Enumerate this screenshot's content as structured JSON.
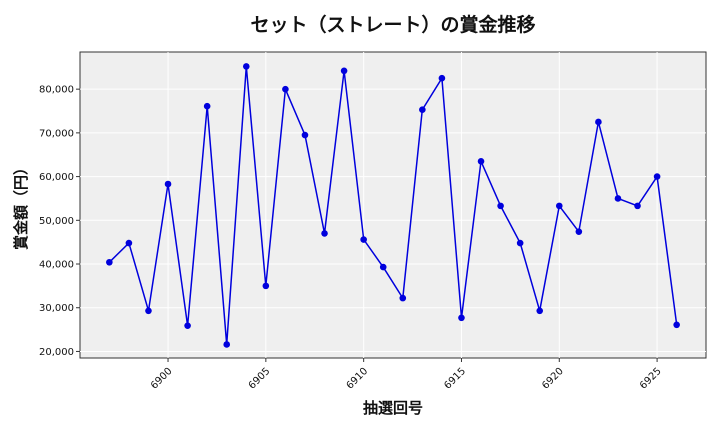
{
  "chart_data": {
    "type": "line",
    "title": "セット（ストレート）の賞金推移",
    "xlabel": "抽選回号",
    "ylabel": "賞金額（円）",
    "xlim": [
      6895.5,
      6927.5
    ],
    "ylim": [
      18500,
      88500
    ],
    "x_ticks": [
      6900,
      6905,
      6910,
      6915,
      6920,
      6925
    ],
    "y_ticks": [
      20000,
      30000,
      40000,
      50000,
      60000,
      70000,
      80000
    ],
    "y_tick_labels": [
      "20,000",
      "30,000",
      "40,000",
      "50,000",
      "60,000",
      "70,000",
      "80,000"
    ],
    "grid": true,
    "colors": {
      "series": "#0000dd",
      "plot_bg": "#efefef",
      "grid": "#ffffff"
    },
    "series": [
      {
        "x": [
          6897,
          6898,
          6899,
          6900,
          6901,
          6902,
          6903,
          6904,
          6905,
          6906,
          6907,
          6908,
          6909,
          6910,
          6911,
          6912,
          6913,
          6914,
          6915,
          6916,
          6917,
          6918,
          6919,
          6920,
          6921,
          6922,
          6923,
          6924,
          6925,
          6926
        ],
        "values": [
          40400,
          44800,
          29300,
          58300,
          25900,
          76100,
          21600,
          85200,
          35000,
          80000,
          69500,
          47000,
          84200,
          45600,
          39300,
          32200,
          75300,
          82500,
          27700,
          63500,
          53300,
          44800,
          29300,
          53300,
          47400,
          72500,
          55000,
          53300,
          60000,
          26100
        ]
      }
    ]
  }
}
